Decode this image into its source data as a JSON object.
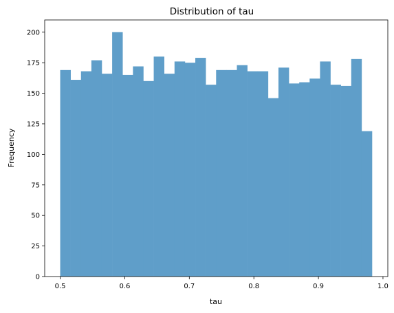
{
  "chart_data": {
    "type": "bar",
    "subtype": "histogram",
    "title": "Distribution of tau",
    "xlabel": "tau",
    "ylabel": "Frequency",
    "bin_start": 0.5,
    "bin_width": 0.0161,
    "values": [
      169,
      161,
      168,
      177,
      166,
      200,
      165,
      172,
      160,
      180,
      166,
      176,
      175,
      179,
      157,
      169,
      169,
      173,
      168,
      168,
      146,
      171,
      158,
      159,
      162,
      176,
      157,
      156,
      178,
      119
    ],
    "xlim": [
      0.476,
      1.0075
    ],
    "ylim": [
      0,
      210
    ],
    "xticks": [
      0.5,
      0.6,
      0.7,
      0.8,
      0.9,
      1.0
    ],
    "xtick_labels": [
      "0.5",
      "0.6",
      "0.7",
      "0.8",
      "0.9",
      "1.0"
    ],
    "yticks": [
      0,
      25,
      50,
      75,
      100,
      125,
      150,
      175,
      200
    ],
    "ytick_labels": [
      "0",
      "25",
      "50",
      "75",
      "100",
      "125",
      "150",
      "175",
      "200"
    ],
    "bar_color": "#5f9ec9",
    "grid": false,
    "legend": "none"
  }
}
